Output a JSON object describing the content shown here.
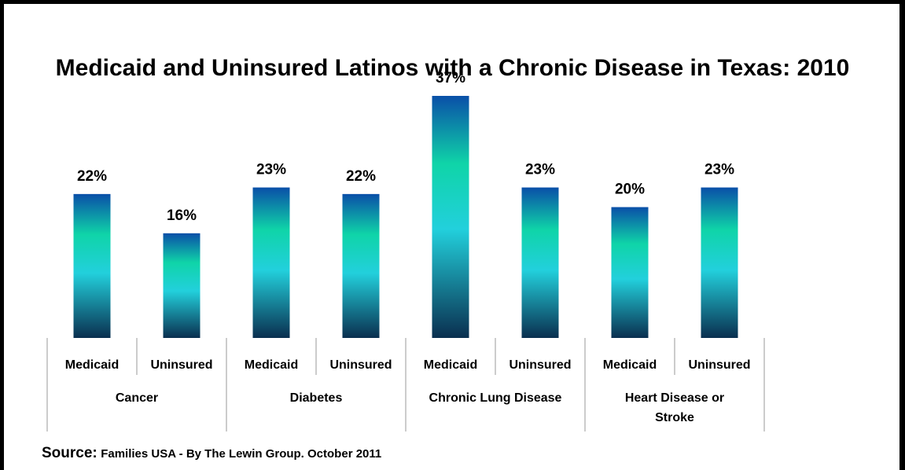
{
  "chart_data": {
    "type": "bar",
    "title": "Medicaid and Uninsured Latinos with a Chronic Disease in Texas: 2010",
    "groups": [
      "Cancer",
      "Diabetes",
      "Chronic Lung Disease",
      "Heart Disease or Stroke"
    ],
    "categories": [
      "Medicaid",
      "Uninsured",
      "Medicaid",
      "Uninsured",
      "Medicaid",
      "Uninsured",
      "Medicaid",
      "Uninsured"
    ],
    "values": [
      22,
      16,
      23,
      22,
      37,
      23,
      20,
      23
    ],
    "data_labels": [
      "22%",
      "16%",
      "23%",
      "22%",
      "37%",
      "23%",
      "20%",
      "23%"
    ],
    "unit": "%",
    "ylim": [
      0,
      38
    ],
    "grid": false,
    "legend": "none",
    "colors": {
      "top": "#0a4fa8",
      "upper": "#0fd4a8",
      "mid": "#22d0dc",
      "bottom": "#0a2f4f"
    }
  },
  "source": {
    "label": "Source",
    "separator": ":",
    "text": "Families USA - By The Lewin Group. October 2011"
  }
}
